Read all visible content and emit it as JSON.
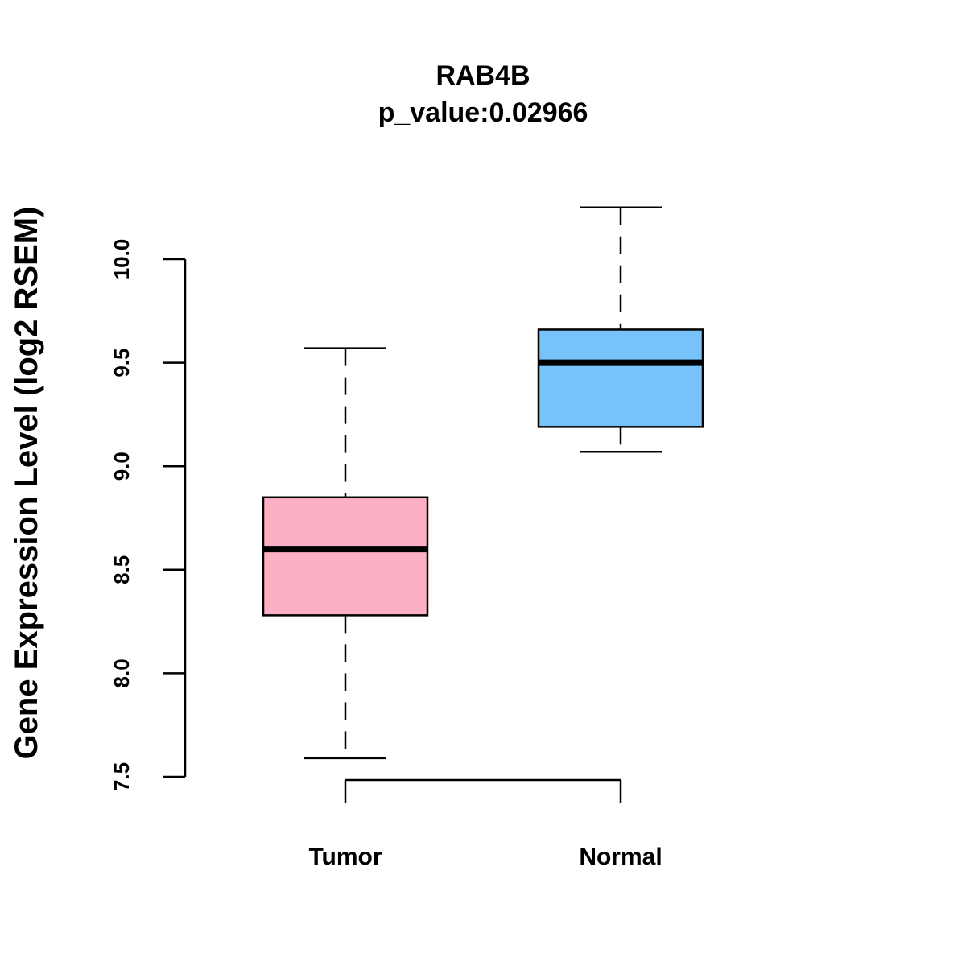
{
  "chart_data": {
    "type": "box",
    "title": "RAB4B",
    "subtitle": "p_value:0.02966",
    "xlabel": "",
    "ylabel": "Gene Expression Level (log2 RSEM)",
    "ylim": [
      7.5,
      10.0
    ],
    "yticks": [
      "7.5",
      "8.0",
      "8.5",
      "9.0",
      "9.5",
      "10.0"
    ],
    "grid": false,
    "categories": [
      "Tumor",
      "Normal"
    ],
    "boxes": [
      {
        "name": "Tumor",
        "min": 7.59,
        "q1": 8.28,
        "median": 8.6,
        "q3": 8.85,
        "max": 9.57,
        "color": "#FBB0C3"
      },
      {
        "name": "Normal",
        "min": 9.07,
        "q1": 9.19,
        "median": 9.5,
        "q3": 9.66,
        "max": 10.25,
        "color": "#77C2F8"
      }
    ]
  }
}
